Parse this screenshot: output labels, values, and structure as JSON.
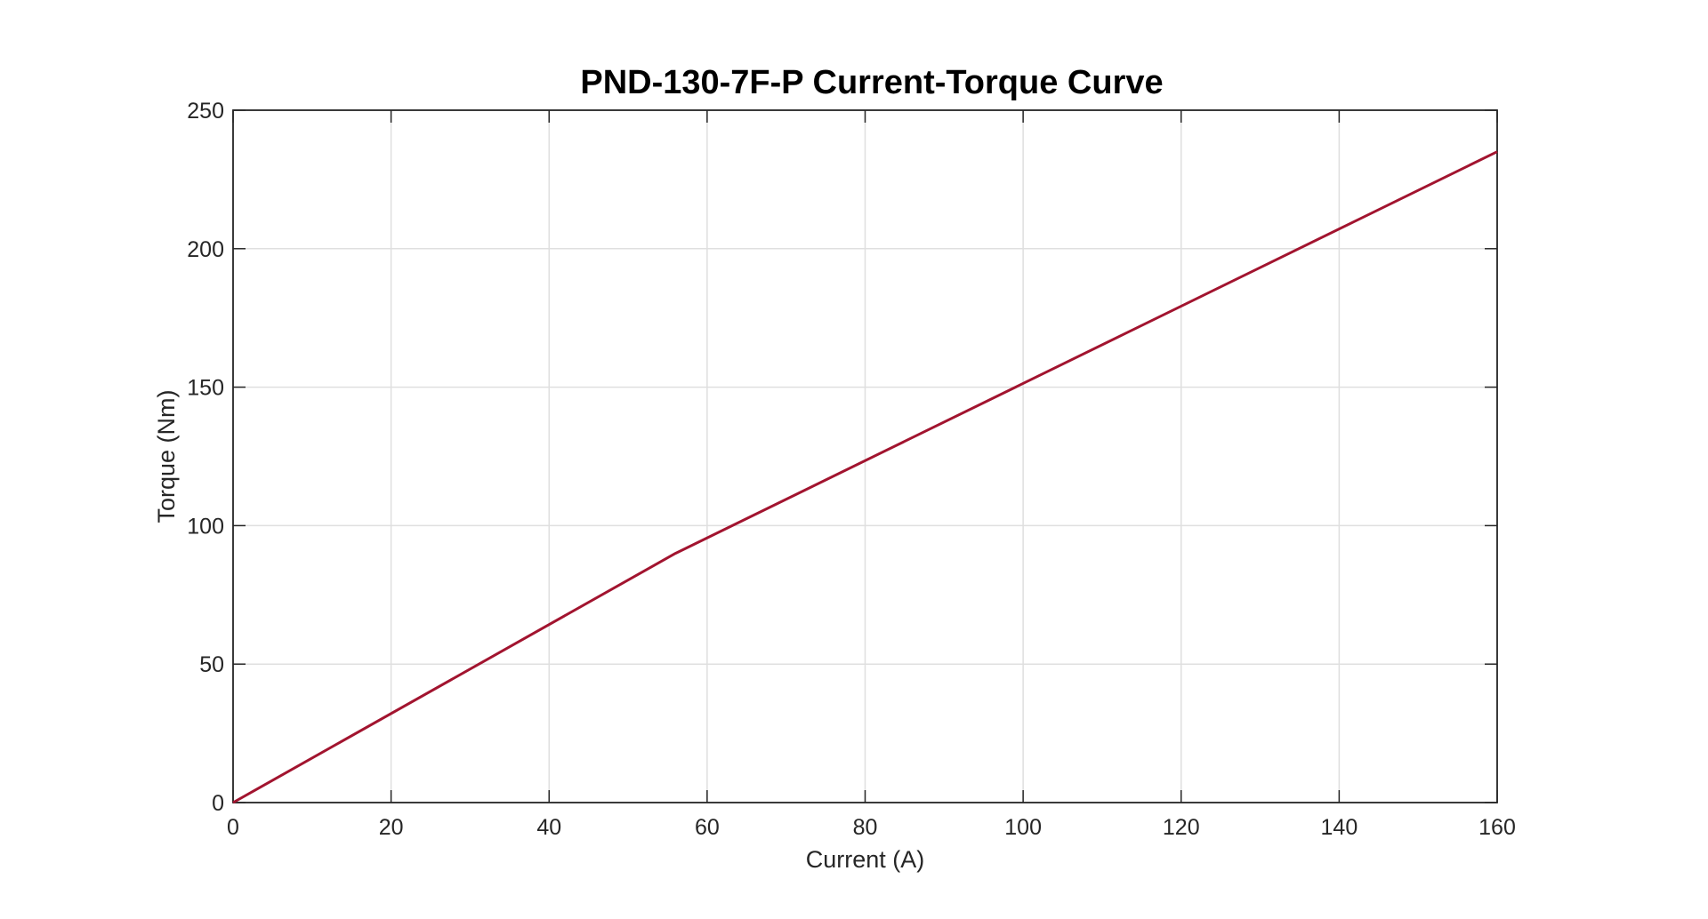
{
  "chart_data": {
    "type": "line",
    "title": "PND-130-7F-P Current-Torque Curve",
    "xlabel": "Current (A)",
    "ylabel": "Torque (Nm)",
    "xlim": [
      0,
      160
    ],
    "ylim": [
      0,
      250
    ],
    "xticks": [
      0,
      20,
      40,
      60,
      80,
      100,
      120,
      140,
      160
    ],
    "yticks": [
      0,
      50,
      100,
      150,
      200,
      250
    ],
    "grid": true,
    "series": [
      {
        "x": [
          0,
          56,
          160
        ],
        "y": [
          0,
          90,
          235
        ]
      }
    ],
    "colors": {
      "line": "#A2142F",
      "grid": "#DFDFDF",
      "axes": "#262626"
    }
  }
}
